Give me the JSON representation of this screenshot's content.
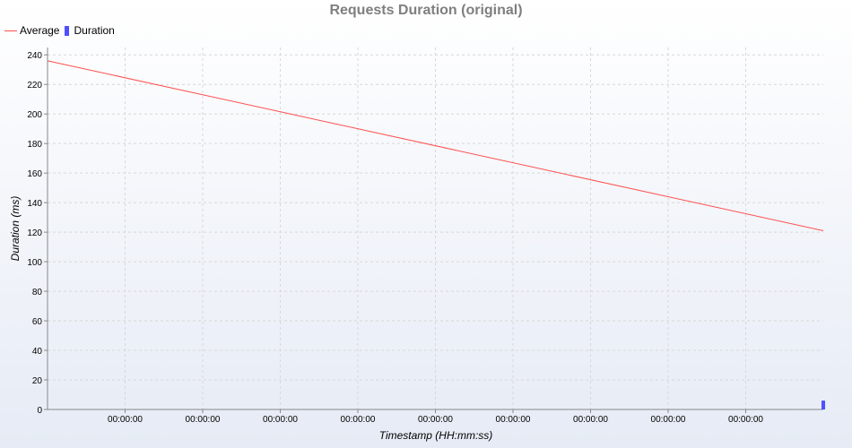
{
  "chart_data": {
    "type": "line",
    "title": "Requests Duration (original)",
    "xlabel": "Timestamp (HH:mm:ss)",
    "ylabel": "Duration (ms)",
    "ylim": [
      0,
      245
    ],
    "y_ticks": [
      0,
      20,
      40,
      60,
      80,
      100,
      120,
      140,
      160,
      180,
      200,
      220,
      240
    ],
    "x_tick_labels": [
      "00:00:00",
      "00:00:00",
      "00:00:00",
      "00:00:00",
      "00:00:00",
      "00:00:00",
      "00:00:00",
      "00:00:00",
      "00:00:00"
    ],
    "grid": true,
    "legend_position": "top-left",
    "series": [
      {
        "name": "Average",
        "type": "line",
        "color": "#ff4f4f",
        "values": [
          236,
          121
        ]
      },
      {
        "name": "Duration",
        "type": "bar",
        "color": "#4f4fff",
        "values": [
          6
        ]
      }
    ]
  }
}
